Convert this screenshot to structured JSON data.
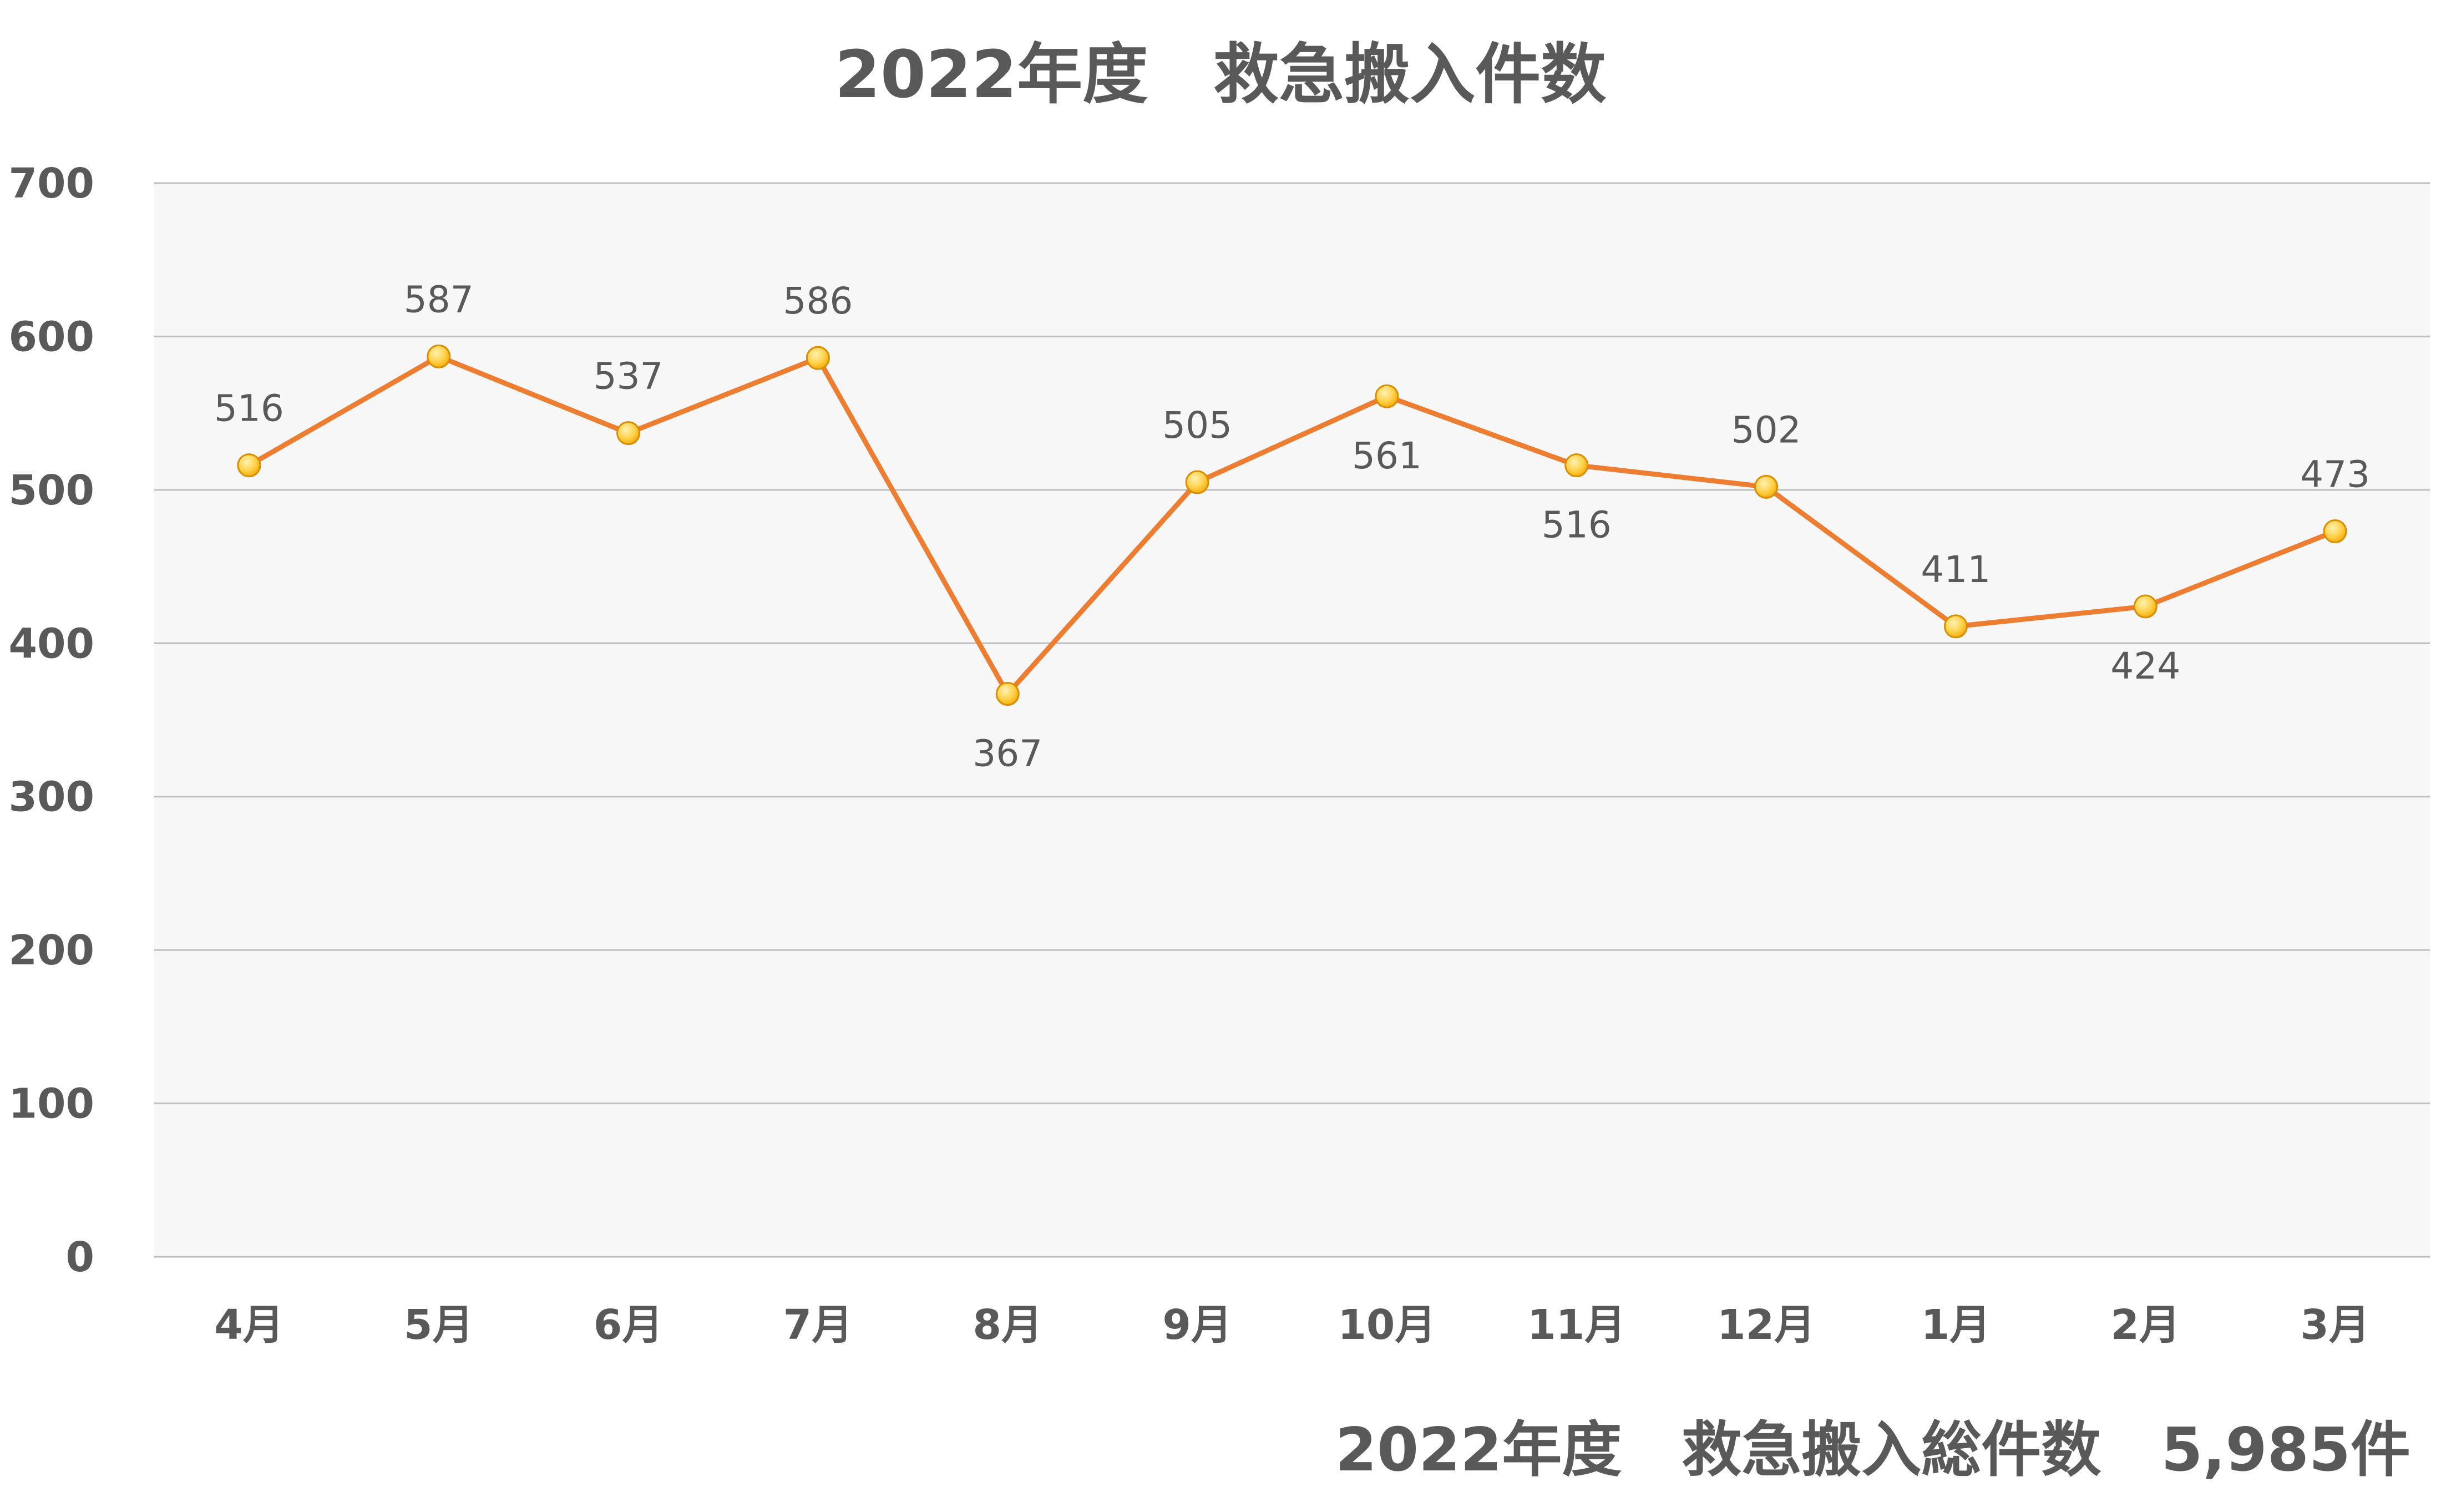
{
  "chart_data": {
    "type": "line",
    "title": "2022年度　救急搬入件数",
    "categories": [
      "4月",
      "5月",
      "6月",
      "7月",
      "8月",
      "9月",
      "10月",
      "11月",
      "12月",
      "1月",
      "2月",
      "3月"
    ],
    "series": [
      {
        "values": [
          516,
          587,
          537,
          586,
          367,
          505,
          561,
          516,
          502,
          411,
          424,
          473
        ],
        "color": "#ED7D31"
      }
    ],
    "label_positions": [
      "above",
      "above",
      "above",
      "above",
      "below",
      "above",
      "below",
      "below",
      "above",
      "above",
      "below",
      "above"
    ],
    "ylim": [
      0,
      700
    ],
    "yticks": [
      0,
      100,
      200,
      300,
      400,
      500,
      600,
      700
    ],
    "grid": true,
    "legend": "none",
    "marker_color": "#FFC000",
    "plot_background": "#F7F7F7",
    "gridline_color": "#BFBFBF"
  },
  "footer": {
    "text": "2022年度　救急搬入総件数　5,985件"
  }
}
